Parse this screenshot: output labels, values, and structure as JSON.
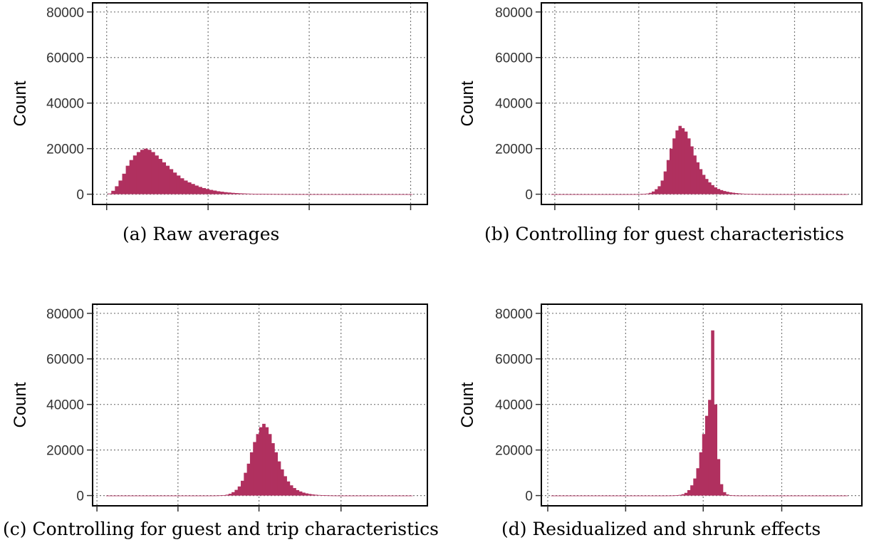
{
  "chart_data": [
    {
      "type": "bar",
      "caption": "(a) Raw averages",
      "ylabel": "Count",
      "ylim": [
        -4500,
        84000
      ],
      "y_ticks": [
        0,
        20000,
        40000,
        60000,
        80000
      ],
      "x_tick_count": 4,
      "bar_color": "#B0305F",
      "grid": "dotted",
      "values": [
        300,
        1500,
        3500,
        6000,
        9000,
        12500,
        15000,
        17000,
        18500,
        19500,
        20000,
        19500,
        18500,
        17000,
        15500,
        14000,
        12500,
        11000,
        9500,
        8200,
        7000,
        6000,
        5200,
        4500,
        3800,
        3200,
        2700,
        2300,
        1900,
        1600,
        1300,
        1100,
        900,
        750,
        600,
        500,
        400,
        340,
        280,
        230,
        190,
        160,
        130,
        110,
        90,
        75,
        60,
        50,
        40,
        35,
        30,
        25,
        20,
        18,
        15,
        12,
        10,
        9,
        8,
        7,
        6,
        5,
        4,
        4,
        3,
        3,
        3,
        2,
        2,
        2,
        2,
        2,
        1,
        1,
        1,
        1,
        1,
        1,
        1,
        1,
        1,
        1,
        1,
        1
      ]
    },
    {
      "type": "bar",
      "caption": "(b) Controlling for guest characteristics",
      "ylabel": "Count",
      "ylim": [
        -4500,
        84000
      ],
      "y_ticks": [
        0,
        20000,
        40000,
        60000,
        80000
      ],
      "x_tick_count": 4,
      "bar_color": "#B0305F",
      "grid": "dotted",
      "values": [
        2,
        2,
        2,
        2,
        2,
        2,
        2,
        2,
        2,
        2,
        2,
        2,
        2,
        2,
        2,
        2,
        2,
        2,
        2,
        2,
        2,
        2,
        2,
        2,
        2,
        3,
        5,
        10,
        20,
        40,
        80,
        150,
        300,
        600,
        1200,
        2200,
        3500,
        6000,
        10000,
        15000,
        20000,
        24500,
        28000,
        30000,
        29000,
        27500,
        24500,
        21000,
        17000,
        14000,
        11000,
        8500,
        6700,
        5200,
        4000,
        3000,
        2300,
        1800,
        1400,
        1100,
        850,
        650,
        500,
        380,
        280,
        200,
        150,
        100,
        70,
        50,
        30,
        20,
        10,
        6,
        4,
        3,
        2,
        2,
        2,
        2,
        2,
        2,
        2,
        2,
        2,
        2,
        2,
        2,
        2,
        2,
        2,
        2,
        2,
        2,
        2,
        2,
        2,
        2,
        2,
        2
      ]
    },
    {
      "type": "bar",
      "caption": "(c) Controlling for guest and trip characteristics",
      "ylabel": "Count",
      "ylim": [
        -4500,
        84000
      ],
      "y_ticks": [
        0,
        20000,
        40000,
        60000,
        80000
      ],
      "x_tick_count": 4,
      "bar_color": "#B0305F",
      "grid": "dotted",
      "values": [
        2,
        2,
        2,
        2,
        2,
        2,
        2,
        2,
        2,
        2,
        2,
        2,
        2,
        2,
        2,
        2,
        2,
        2,
        2,
        2,
        2,
        2,
        2,
        2,
        2,
        2,
        2,
        2,
        2,
        2,
        2,
        2,
        3,
        5,
        10,
        20,
        50,
        100,
        200,
        400,
        800,
        1500,
        2500,
        4000,
        6500,
        10000,
        14000,
        19000,
        23500,
        27000,
        30000,
        31500,
        30000,
        27000,
        23000,
        19000,
        15000,
        11500,
        8500,
        6200,
        4500,
        3300,
        2400,
        1800,
        1300,
        950,
        700,
        500,
        360,
        260,
        180,
        120,
        80,
        50,
        30,
        15,
        8,
        4,
        2,
        2,
        2,
        2,
        2,
        2,
        2,
        2,
        2,
        2,
        2,
        2,
        2,
        2,
        2,
        2,
        2,
        2,
        2,
        2,
        2,
        2
      ]
    },
    {
      "type": "bar",
      "caption": "(d) Residualized and shrunk effects",
      "ylabel": "Count",
      "ylim": [
        -4500,
        84000
      ],
      "y_ticks": [
        0,
        20000,
        40000,
        60000,
        80000
      ],
      "x_tick_count": 4,
      "bar_color": "#B0305F",
      "grid": "dotted",
      "values": [
        2,
        2,
        2,
        2,
        2,
        2,
        2,
        2,
        2,
        2,
        2,
        2,
        2,
        2,
        2,
        2,
        2,
        2,
        2,
        2,
        2,
        2,
        2,
        2,
        2,
        2,
        2,
        2,
        2,
        2,
        2,
        2,
        2,
        2,
        2,
        2,
        3,
        5,
        10,
        20,
        40,
        80,
        150,
        300,
        600,
        1200,
        2400,
        4500,
        7500,
        12000,
        19000,
        27000,
        35000,
        42000,
        72500,
        40000,
        16000,
        5000,
        1500,
        500,
        200,
        80,
        30,
        10,
        5,
        3,
        2,
        2,
        2,
        2,
        2,
        2,
        2,
        2,
        2,
        2,
        2,
        2,
        2,
        2,
        2,
        2,
        2,
        2,
        2,
        2,
        2,
        2,
        2,
        2,
        2,
        2,
        2,
        2,
        2,
        2,
        2,
        2,
        2,
        2
      ]
    }
  ]
}
